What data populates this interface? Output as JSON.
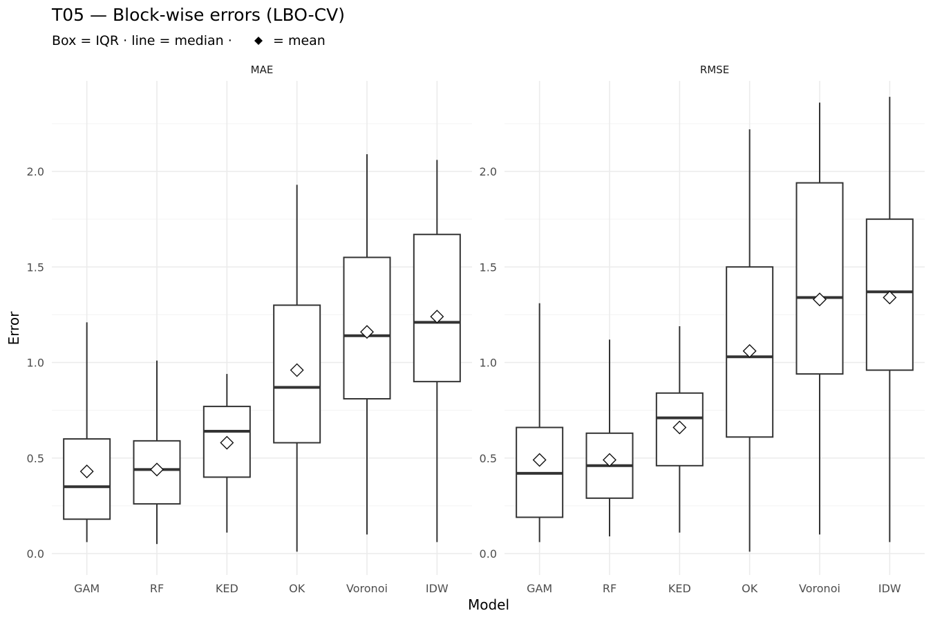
{
  "title": "T05 — Block-wise errors (LBO-CV)",
  "subtitle_prefix": "Box = IQR · line = median ·",
  "subtitle_suffix": "= mean",
  "legend_mean_symbol": "diamond",
  "colors": {
    "box_stroke": "#333333",
    "grid": "#ebebeb",
    "mean_fill": "#ffffff"
  },
  "chart_data": [
    {
      "type": "box",
      "panel": "MAE",
      "xlabel": "Model",
      "ylabel": "Error",
      "ylim": [
        -0.1,
        2.5
      ],
      "y_ticks": [
        "0.0",
        "0.5",
        "1.0",
        "1.5",
        "2.0"
      ],
      "grid": true,
      "categories": [
        "GAM",
        "RF",
        "KED",
        "OK",
        "Voronoi",
        "IDW"
      ],
      "boxes": [
        {
          "model": "GAM",
          "min": 0.06,
          "q1": 0.18,
          "median": 0.35,
          "q3": 0.6,
          "max": 1.21,
          "mean": 0.43
        },
        {
          "model": "RF",
          "min": 0.05,
          "q1": 0.26,
          "median": 0.44,
          "q3": 0.59,
          "max": 1.01,
          "mean": 0.44
        },
        {
          "model": "KED",
          "min": 0.11,
          "q1": 0.4,
          "median": 0.64,
          "q3": 0.77,
          "max": 0.94,
          "mean": 0.58
        },
        {
          "model": "OK",
          "min": 0.01,
          "q1": 0.58,
          "median": 0.87,
          "q3": 1.3,
          "max": 1.93,
          "mean": 0.96
        },
        {
          "model": "Voronoi",
          "min": 0.1,
          "q1": 0.81,
          "median": 1.14,
          "q3": 1.55,
          "max": 2.09,
          "mean": 1.16
        },
        {
          "model": "IDW",
          "min": 0.06,
          "q1": 0.9,
          "median": 1.21,
          "q3": 1.67,
          "max": 2.06,
          "mean": 1.24
        }
      ]
    },
    {
      "type": "box",
      "panel": "RMSE",
      "xlabel": "Model",
      "ylabel": "Error",
      "ylim": [
        -0.1,
        2.5
      ],
      "y_ticks": [
        "0.0",
        "0.5",
        "1.0",
        "1.5",
        "2.0"
      ],
      "grid": true,
      "categories": [
        "GAM",
        "RF",
        "KED",
        "OK",
        "Voronoi",
        "IDW"
      ],
      "boxes": [
        {
          "model": "GAM",
          "min": 0.06,
          "q1": 0.19,
          "median": 0.42,
          "q3": 0.66,
          "max": 1.31,
          "mean": 0.49
        },
        {
          "model": "RF",
          "min": 0.09,
          "q1": 0.29,
          "median": 0.46,
          "q3": 0.63,
          "max": 1.12,
          "mean": 0.49
        },
        {
          "model": "KED",
          "min": 0.11,
          "q1": 0.46,
          "median": 0.71,
          "q3": 0.84,
          "max": 1.19,
          "mean": 0.66
        },
        {
          "model": "OK",
          "min": 0.01,
          "q1": 0.61,
          "median": 1.03,
          "q3": 1.5,
          "max": 2.22,
          "mean": 1.06
        },
        {
          "model": "Voronoi",
          "min": 0.1,
          "q1": 0.94,
          "median": 1.34,
          "q3": 1.94,
          "max": 2.36,
          "mean": 1.33
        },
        {
          "model": "IDW",
          "min": 0.06,
          "q1": 0.96,
          "median": 1.37,
          "q3": 1.75,
          "max": 2.39,
          "mean": 1.34
        }
      ]
    }
  ]
}
